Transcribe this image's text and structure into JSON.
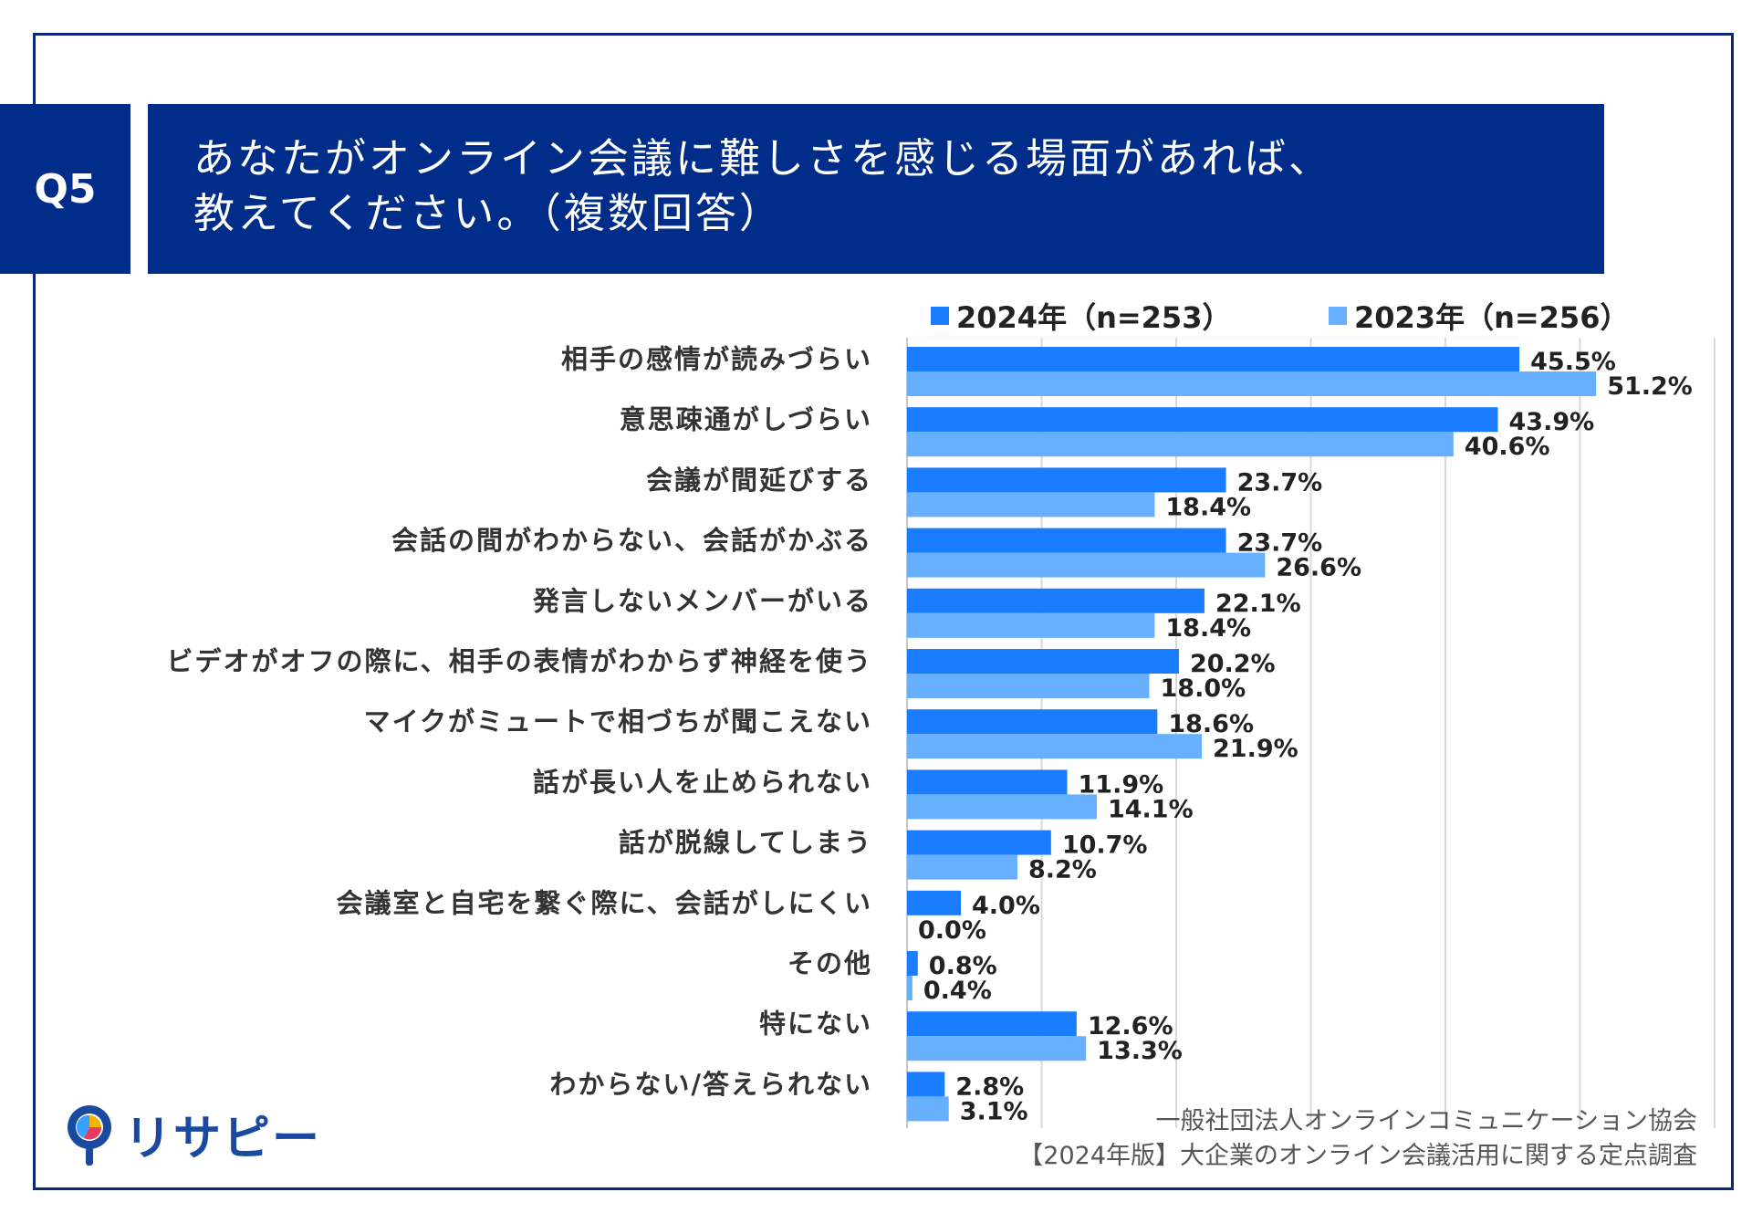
{
  "header": {
    "q_label": "Q5",
    "title_line1": "あなたがオンライン会議に難しさを感じる場面があれば、",
    "title_line2": "教えてください。（複数回答）"
  },
  "colors": {
    "navy": "#002c8a",
    "series_2024": "#1a7cff",
    "series_2023": "#66b0ff",
    "grid": "#d9d9d9"
  },
  "chart_data": {
    "type": "bar",
    "orientation": "horizontal",
    "categories": [
      "相手の感情が読みづらい",
      "意思疎通がしづらい",
      "会議が間延びする",
      "会話の間がわからない、会話がかぶる",
      "発言しないメンバーがいる",
      "ビデオがオフの際に、相手の表情がわからず神経を使う",
      "マイクがミュートで相づちが聞こえない",
      "話が長い人を止められない",
      "話が脱線してしまう",
      "会議室と自宅を繋ぐ際に、会話がしにくい",
      "その他",
      "特にない",
      "わからない/答えられない"
    ],
    "series": [
      {
        "name": "2024年（n=253）",
        "values": [
          45.5,
          43.9,
          23.7,
          23.7,
          22.1,
          20.2,
          18.6,
          11.9,
          10.7,
          4.0,
          0.8,
          12.6,
          2.8
        ],
        "labels": [
          "45.5%",
          "43.9%",
          "23.7%",
          "23.7%",
          "22.1%",
          "20.2%",
          "18.6%",
          "11.9%",
          "10.7%",
          "4.0%",
          "0.8%",
          "12.6%",
          "2.8%"
        ]
      },
      {
        "name": "2023年（n=256）",
        "values": [
          51.2,
          40.6,
          18.4,
          26.6,
          18.4,
          18.0,
          21.9,
          14.1,
          8.2,
          0.0,
          0.4,
          13.3,
          3.1
        ],
        "labels": [
          "51.2%",
          "40.6%",
          "18.4%",
          "26.6%",
          "18.4%",
          "18.0%",
          "21.9%",
          "14.1%",
          "8.2%",
          "0.0%",
          "0.4%",
          "13.3%",
          "3.1%"
        ]
      }
    ],
    "xlim": [
      0,
      60
    ],
    "grid": true,
    "legend_position": "top"
  },
  "logo": {
    "text": "リサピー"
  },
  "source": {
    "line1": "一般社団法人オンラインコミュニケーション協会",
    "line2": "【2024年版】大企業のオンライン会議活用に関する定点調査"
  }
}
